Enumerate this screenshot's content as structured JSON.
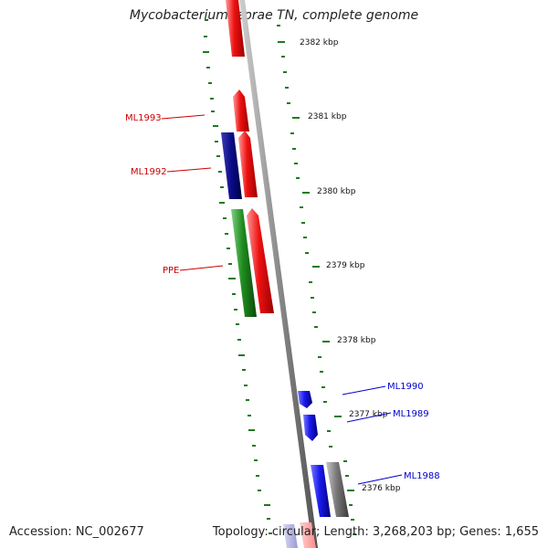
{
  "header": {
    "title": "Mycobacterium leprae TN, complete genome"
  },
  "footer": {
    "accession": "Accession: NC_002677",
    "summary": "Topology: circular; Length: 3,268,203 bp; Genes: 1,655"
  },
  "colors": {
    "plus_strand": "#ee1111",
    "minus_strand_dark": "#0a0a88",
    "minus_strand": "#1a1aee",
    "ppe_gene": "#1f8c1f",
    "other_gene": "#7a7a7a",
    "scale_ticks": "#1f7a1f",
    "backbone": "#8a8a8a"
  },
  "scale_labels": [
    "2382 kbp",
    "2381 kbp",
    "2380 kbp",
    "2379 kbp",
    "2378 kbp",
    "2377 kbp",
    "2376 kbp"
  ],
  "gene_labels": [
    {
      "text": "ML1993",
      "strand": "plus"
    },
    {
      "text": "ML1992",
      "strand": "plus"
    },
    {
      "text": "PPE",
      "strand": "plus"
    },
    {
      "text": "ML1990",
      "strand": "minus"
    },
    {
      "text": "ML1989",
      "strand": "minus"
    },
    {
      "text": "ML1988",
      "strand": "minus"
    }
  ]
}
